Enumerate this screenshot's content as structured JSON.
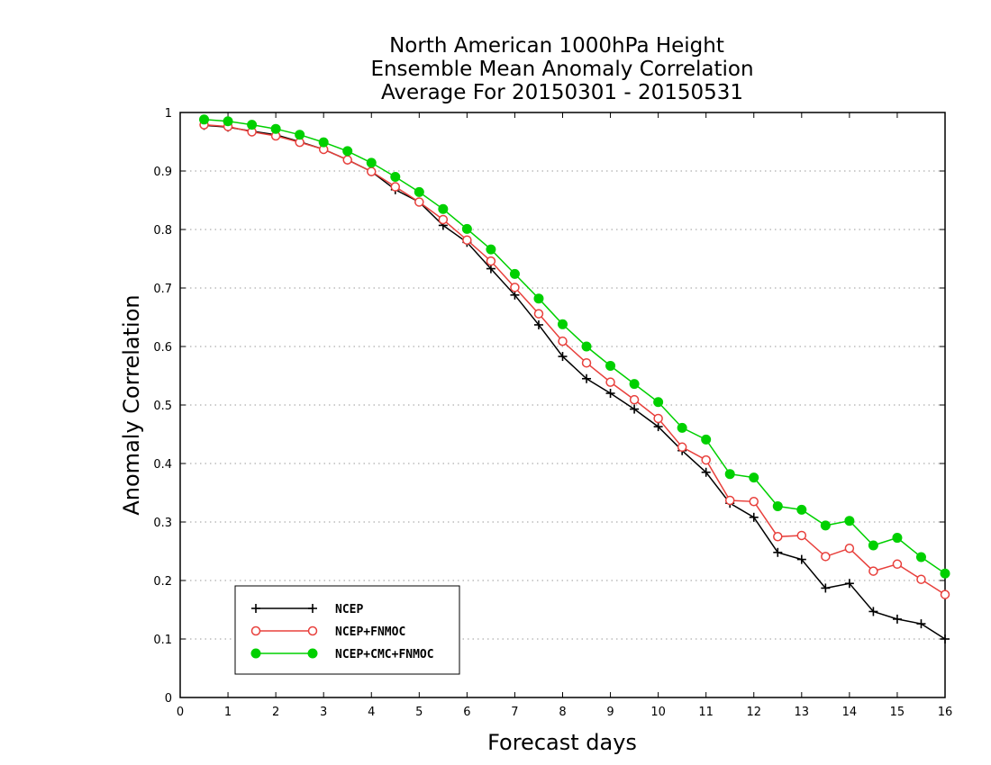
{
  "chart_data": {
    "type": "line",
    "title_lines": [
      "North American 1000hPa Height",
      "Ensemble Mean Anomaly Correlation",
      "Average For 20150301 - 20150531"
    ],
    "xlabel": "Forecast days",
    "ylabel": "Anomaly Correlation",
    "xlim": [
      0,
      16
    ],
    "ylim": [
      0,
      1
    ],
    "xticks": [
      "0",
      "1",
      "2",
      "3",
      "4",
      "5",
      "6",
      "7",
      "8",
      "9",
      "10",
      "11",
      "12",
      "13",
      "14",
      "15",
      "16"
    ],
    "yticks": [
      "0",
      "0.1",
      "0.2",
      "0.3",
      "0.4",
      "0.5",
      "0.6",
      "0.7",
      "0.8",
      "0.9",
      "1"
    ],
    "grid": "horizontal dotted",
    "legend_position": "bottom-left",
    "x": [
      0.5,
      1,
      1.5,
      2,
      2.5,
      3,
      3.5,
      4,
      4.5,
      5,
      5.5,
      6,
      6.5,
      7,
      7.5,
      8,
      8.5,
      9,
      9.5,
      10,
      10.5,
      11,
      11.5,
      12,
      12.5,
      13,
      13.5,
      14,
      14.5,
      15,
      15.5,
      16
    ],
    "series": [
      {
        "name": "NCEP",
        "color": "#000000",
        "marker": "plus",
        "values": [
          0.978,
          0.975,
          0.968,
          0.962,
          0.95,
          0.937,
          0.919,
          0.899,
          0.868,
          0.847,
          0.807,
          0.778,
          0.733,
          0.688,
          0.637,
          0.583,
          0.545,
          0.52,
          0.493,
          0.463,
          0.422,
          0.385,
          0.332,
          0.308,
          0.248,
          0.236,
          0.187,
          0.195,
          0.147,
          0.134,
          0.126,
          0.1
        ]
      },
      {
        "name": "NCEP+FNMOC",
        "color": "#e8403c",
        "marker": "open-circle",
        "values": [
          0.979,
          0.976,
          0.967,
          0.96,
          0.949,
          0.937,
          0.919,
          0.899,
          0.873,
          0.847,
          0.817,
          0.782,
          0.746,
          0.701,
          0.656,
          0.609,
          0.572,
          0.539,
          0.509,
          0.477,
          0.428,
          0.406,
          0.337,
          0.335,
          0.275,
          0.277,
          0.241,
          0.255,
          0.216,
          0.228,
          0.202,
          0.176
        ]
      },
      {
        "name": "NCEP+CMC+FNMOC",
        "color": "#00d000",
        "marker": "filled-circle",
        "values": [
          0.988,
          0.985,
          0.979,
          0.972,
          0.962,
          0.949,
          0.934,
          0.914,
          0.89,
          0.864,
          0.835,
          0.801,
          0.766,
          0.724,
          0.682,
          0.638,
          0.6,
          0.567,
          0.536,
          0.505,
          0.461,
          0.441,
          0.382,
          0.376,
          0.327,
          0.321,
          0.294,
          0.302,
          0.26,
          0.273,
          0.24,
          0.212
        ]
      }
    ]
  }
}
